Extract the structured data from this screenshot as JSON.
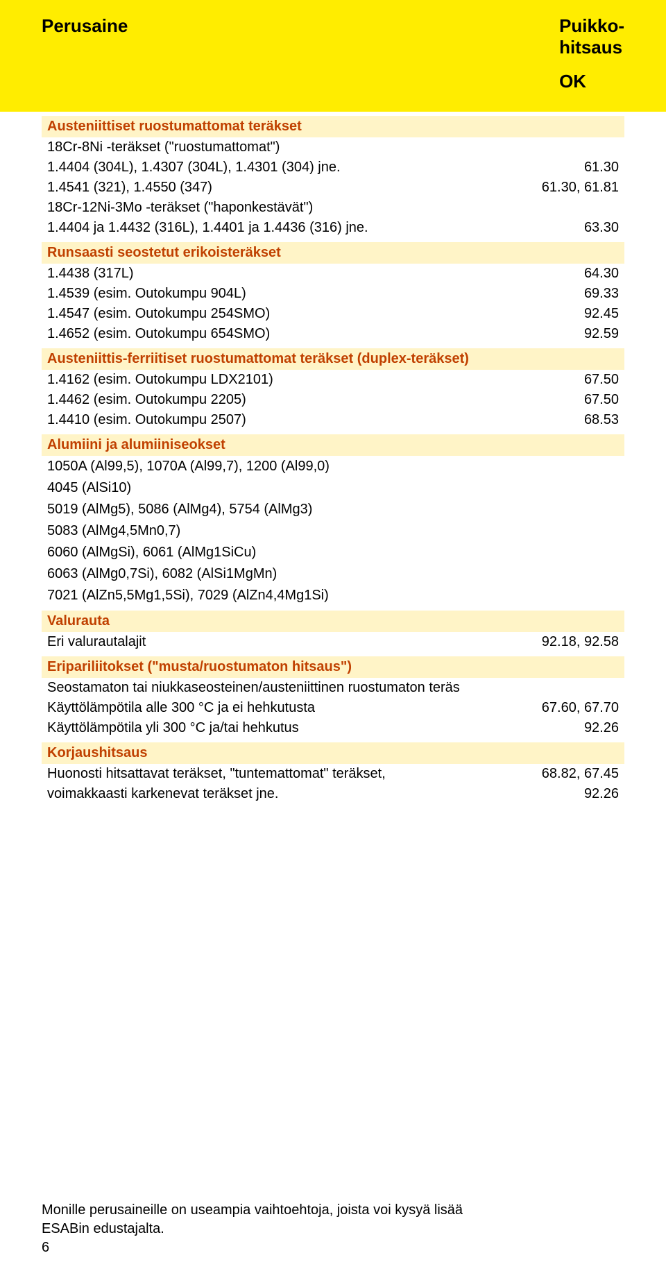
{
  "header": {
    "left": "Perusaine",
    "right_line1": "Puikko-",
    "right_line2": "hitsaus",
    "right_sub": "OK"
  },
  "colors": {
    "header_bg": "#ffed00",
    "section_bg": "#fff4c7",
    "section_text": "#c04000",
    "body_text": "#000000",
    "page_bg": "#ffffff"
  },
  "sections": [
    {
      "heading": "Austeniittiset ruostumattomat teräkset",
      "rows": [
        {
          "label": "18Cr-8Ni -teräkset (\"ruostumattomat\")",
          "value": ""
        },
        {
          "label": "1.4404 (304L), 1.4307 (304L), 1.4301 (304) jne.",
          "value": "61.30"
        },
        {
          "label": "1.4541 (321), 1.4550 (347)",
          "value": "61.30, 61.81"
        },
        {
          "label": "18Cr-12Ni-3Mo -teräkset (\"haponkestävät\")",
          "value": ""
        },
        {
          "label": "1.4404 ja 1.4432 (316L), 1.4401 ja 1.4436 (316) jne.",
          "value": "63.30"
        }
      ]
    },
    {
      "heading": "Runsaasti seostetut erikoisteräkset",
      "rows": [
        {
          "label": "1.4438 (317L)",
          "value": "64.30"
        },
        {
          "label": "1.4539 (esim. Outokumpu 904L)",
          "value": "69.33"
        },
        {
          "label": "1.4547 (esim. Outokumpu 254SMO)",
          "value": "92.45"
        },
        {
          "label": "1.4652 (esim. Outokumpu 654SMO)",
          "value": "92.59"
        }
      ]
    },
    {
      "heading": "Austeniittis-ferriitiset ruostumattomat teräkset (duplex-teräkset)",
      "rows": [
        {
          "label": "1.4162 (esim. Outokumpu LDX2101)",
          "value": "67.50"
        },
        {
          "label": "1.4462 (esim. Outokumpu 2205)",
          "value": "67.50"
        },
        {
          "label": "1.4410 (esim. Outokumpu 2507)",
          "value": "68.53"
        }
      ]
    },
    {
      "heading": "Alumiini ja alumiiniseokset",
      "plain": [
        "1050A (Al99,5), 1070A (Al99,7), 1200 (Al99,0)",
        "4045 (AlSi10)",
        "5019 (AlMg5), 5086 (AlMg4), 5754 (AlMg3)",
        "5083 (AlMg4,5Mn0,7)",
        "6060 (AlMgSi), 6061 (AlMg1SiCu)",
        "6063 (AlMg0,7Si), 6082 (AlSi1MgMn)",
        "7021 (AlZn5,5Mg1,5Si), 7029 (AlZn4,4Mg1Si)"
      ]
    },
    {
      "heading": "Valurauta",
      "rows": [
        {
          "label": "Eri valurautalajit",
          "value": "92.18, 92.58"
        }
      ]
    },
    {
      "heading": "Eripariliitokset (\"musta/ruostumaton hitsaus\")",
      "rows": [
        {
          "label": "Seostamaton tai niukkaseosteinen/austeniittinen ruostumaton teräs",
          "value": ""
        },
        {
          "label": "Käyttölämpötila alle 300 °C ja ei hehkutusta",
          "value": "67.60, 67.70"
        },
        {
          "label": "Käyttölämpötila yli 300 °C ja/tai hehkutus",
          "value": "92.26"
        }
      ]
    },
    {
      "heading": "Korjaushitsaus",
      "rows": [
        {
          "label": "Huonosti hitsattavat teräkset, \"tuntemattomat\" teräkset,",
          "value": "68.82, 67.45"
        },
        {
          "label": "voimakkaasti karkenevat teräkset jne.",
          "value": "92.26"
        }
      ]
    }
  ],
  "footer": {
    "note_line1": "Monille perusaineille on useampia vaihtoehtoja, joista voi kysyä lisää",
    "note_line2": "ESABin edustajalta.",
    "page_number": "6"
  }
}
